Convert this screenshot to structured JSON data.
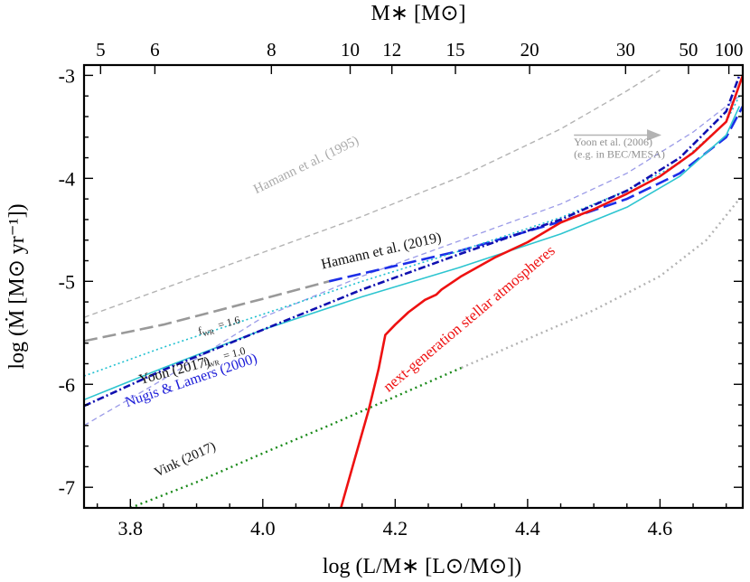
{
  "chart_data": {
    "type": "line",
    "xlabel": "log (L/M∗ [L⊙/M⊙])",
    "ylabel": "log (Ṁ [M⊙ yr⁻¹])",
    "top_axis_label": "M∗ [M⊙]",
    "xlim": [
      3.73,
      4.725
    ],
    "ylim": [
      -7.2,
      -2.9
    ],
    "x_ticks": [
      {
        "v": 3.8,
        "label": "3.8"
      },
      {
        "v": 4.0,
        "label": "4.0"
      },
      {
        "v": 4.2,
        "label": "4.2"
      },
      {
        "v": 4.4,
        "label": "4.4"
      },
      {
        "v": 4.6,
        "label": "4.6"
      }
    ],
    "y_ticks": [
      {
        "v": -7,
        "label": "-7"
      },
      {
        "v": -6,
        "label": "-6"
      },
      {
        "v": -5,
        "label": "-5"
      },
      {
        "v": -4,
        "label": "-4"
      },
      {
        "v": -3,
        "label": "-3"
      }
    ],
    "top_ticks": [
      {
        "x": 3.755,
        "label": "5"
      },
      {
        "x": 3.837,
        "label": "6"
      },
      {
        "x": 4.013,
        "label": "8"
      },
      {
        "x": 4.132,
        "label": "10"
      },
      {
        "x": 4.195,
        "label": "12"
      },
      {
        "x": 4.291,
        "label": "15"
      },
      {
        "x": 4.403,
        "label": "20"
      },
      {
        "x": 4.548,
        "label": "30"
      },
      {
        "x": 4.643,
        "label": "50"
      },
      {
        "x": 4.704,
        "label": "100"
      }
    ],
    "grid": false,
    "series": [
      {
        "key": "hamann1995",
        "color": "#b3b3b3",
        "dash": "6,4",
        "width": 1.4,
        "x": [
          3.73,
          3.85,
          4.0,
          4.15,
          4.3,
          4.45,
          4.55,
          4.6
        ],
        "y": [
          -5.35,
          -5.07,
          -4.72,
          -4.37,
          -3.98,
          -3.52,
          -3.15,
          -2.95
        ]
      },
      {
        "key": "yoon2006",
        "color": "#9b9be8",
        "dash": "6,4",
        "width": 1.3,
        "x": [
          3.73,
          3.85,
          4.0,
          4.15,
          4.3,
          4.45,
          4.55,
          4.65,
          4.72
        ],
        "y": [
          -6.4,
          -5.95,
          -5.35,
          -4.95,
          -4.6,
          -4.25,
          -3.95,
          -3.55,
          -3.2
        ]
      },
      {
        "key": "hamann2019_ext",
        "color": "#999999",
        "dash": "15,6",
        "width": 2.6,
        "x": [
          3.73,
          3.85,
          4.0,
          4.1
        ],
        "y": [
          -5.58,
          -5.42,
          -5.17,
          -5.0
        ]
      },
      {
        "key": "hamann2019",
        "color": "#1c2ee8",
        "dash": "15,6",
        "width": 2.6,
        "x": [
          4.1,
          4.3,
          4.45,
          4.55,
          4.63,
          4.7,
          4.725
        ],
        "y": [
          -5.0,
          -4.7,
          -4.42,
          -4.2,
          -3.95,
          -3.6,
          -3.3
        ]
      },
      {
        "key": "yoon2017_fwr16",
        "color": "#20c0d0",
        "dash": "2,3",
        "width": 1.6,
        "x": [
          3.73,
          3.85,
          4.0,
          4.15,
          4.3,
          4.45,
          4.55,
          4.63,
          4.7,
          4.72
        ],
        "y": [
          -5.92,
          -5.64,
          -5.32,
          -5.0,
          -4.7,
          -4.38,
          -4.12,
          -3.85,
          -3.45,
          -3.2
        ]
      },
      {
        "key": "yoon2017_fwr10",
        "color": "#2dc5d0",
        "dash": "",
        "width": 1.6,
        "x": [
          3.73,
          3.85,
          4.0,
          4.15,
          4.3,
          4.45,
          4.55,
          4.63,
          4.7,
          4.72
        ],
        "y": [
          -6.15,
          -5.84,
          -5.47,
          -5.15,
          -4.86,
          -4.54,
          -4.28,
          -3.98,
          -3.58,
          -3.3
        ]
      },
      {
        "key": "nugis2000",
        "color": "#1010b0",
        "dash": "8,3,2,3",
        "width": 2.6,
        "x": [
          3.73,
          3.85,
          4.0,
          4.15,
          4.3,
          4.45,
          4.55,
          4.63,
          4.7,
          4.72
        ],
        "y": [
          -6.21,
          -5.86,
          -5.47,
          -5.08,
          -4.73,
          -4.4,
          -4.12,
          -3.8,
          -3.35,
          -3.0
        ]
      },
      {
        "key": "vink2017",
        "color": "#1a8a1a",
        "dash": "2,4",
        "width": 2.4,
        "x": [
          3.8,
          3.9,
          4.0,
          4.1,
          4.2,
          4.3
        ],
        "y": [
          -7.2,
          -6.95,
          -6.67,
          -6.4,
          -6.12,
          -5.84
        ]
      },
      {
        "key": "vink2017_ext",
        "color": "#b3b3b3",
        "dash": "2,4",
        "width": 2.4,
        "x": [
          4.3,
          4.4,
          4.5,
          4.6,
          4.67,
          4.72
        ],
        "y": [
          -5.84,
          -5.56,
          -5.28,
          -4.95,
          -4.6,
          -4.2
        ]
      },
      {
        "key": "nextgen",
        "color": "#ee1111",
        "dash": "",
        "width": 2.6,
        "x": [
          4.118,
          4.14,
          4.16,
          4.175,
          4.185,
          4.2,
          4.22,
          4.245,
          4.262,
          4.27,
          4.3,
          4.35,
          4.4,
          4.45,
          4.5,
          4.55,
          4.6,
          4.65,
          4.7,
          4.725
        ],
        "y": [
          -7.2,
          -6.7,
          -6.25,
          -5.85,
          -5.52,
          -5.42,
          -5.3,
          -5.18,
          -5.13,
          -5.08,
          -4.95,
          -4.77,
          -4.62,
          -4.43,
          -4.3,
          -4.15,
          -3.98,
          -3.75,
          -3.45,
          -3.0
        ]
      }
    ],
    "annotations": [
      {
        "key": "lbl_hamann1995",
        "text": "Hamann et al. (1995)",
        "x": 3.99,
        "y": -4.15,
        "rot": -26,
        "color": "#aaaaaa",
        "size": 15
      },
      {
        "key": "lbl_yoon2006a",
        "text": "Yoon et al. (2006)",
        "x": 4.47,
        "y": -3.68,
        "rot": 0,
        "color": "#8f8f8f",
        "size": 12
      },
      {
        "key": "lbl_yoon2006b",
        "text": "(e.g. in BEC/MESA)",
        "x": 4.47,
        "y": -3.8,
        "rot": 0,
        "color": "#8f8f8f",
        "size": 12
      },
      {
        "key": "lbl_hamann2019",
        "text": "Hamann et al. (2019)",
        "x": 4.09,
        "y": -4.88,
        "rot": -13,
        "color": "#111111",
        "size": 16
      },
      {
        "key": "lbl_nextgen",
        "text": "next-generation stellar atmospheres",
        "x": 4.19,
        "y": -6.08,
        "rot": -40,
        "color": "#ee1111",
        "size": 17
      },
      {
        "key": "lbl_fwr16_f",
        "text": "f",
        "x": 3.904,
        "y": -5.52,
        "rot": -15,
        "color": "#222222",
        "size": 12
      },
      {
        "key": "lbl_fwr16_v",
        "text": "= 1.6",
        "x": 3.934,
        "y": -5.46,
        "rot": -15,
        "color": "#222222",
        "size": 12
      },
      {
        "key": "lbl_fwr10_f",
        "text": "f",
        "x": 3.912,
        "y": -5.82,
        "rot": -15,
        "color": "#222222",
        "size": 12
      },
      {
        "key": "lbl_fwr10_v",
        "text": "= 1.0",
        "x": 3.942,
        "y": -5.76,
        "rot": -15,
        "color": "#222222",
        "size": 12
      },
      {
        "key": "lbl_yoon2017",
        "text": "Yoon (2017)",
        "x": 3.815,
        "y": -6.0,
        "rot": -15,
        "color": "#111111",
        "size": 16
      },
      {
        "key": "lbl_nugis",
        "text": "Nugis & Lamers (2000)",
        "x": 3.795,
        "y": -6.22,
        "rot": -19,
        "color": "#1a1ad8",
        "size": 16
      },
      {
        "key": "lbl_vink",
        "text": "Vink (2017)",
        "x": 3.84,
        "y": -6.9,
        "rot": -25,
        "color": "#111111",
        "size": 15
      }
    ],
    "subscripts": {
      "fwr": "WR"
    },
    "arrow": {
      "color": "#b3b3b3",
      "x1": 4.47,
      "y1": -3.58,
      "x2": 4.6,
      "y2": -3.58
    }
  }
}
